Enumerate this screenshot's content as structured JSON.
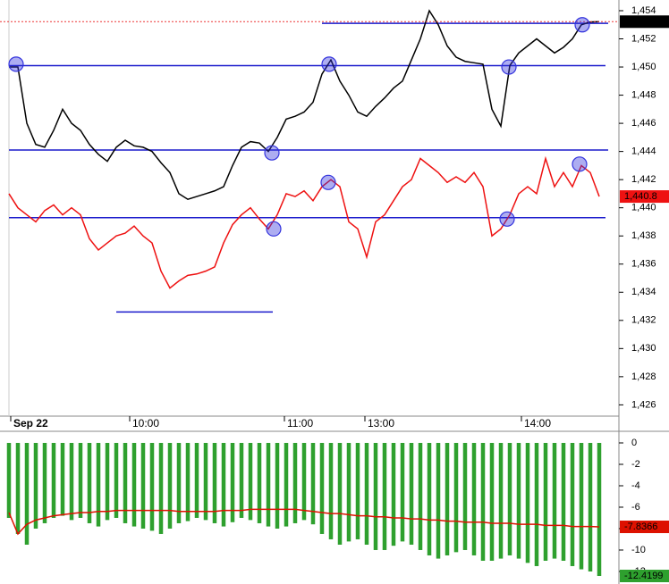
{
  "chart_data": [
    {
      "type": "line",
      "x": [
        0,
        1,
        2,
        3,
        4,
        5,
        6,
        7,
        8,
        9,
        10,
        11,
        12,
        13,
        14,
        15,
        16,
        17,
        18,
        19,
        20,
        21,
        22,
        23,
        24,
        25,
        26,
        27,
        28,
        29,
        30,
        31,
        32,
        33,
        34,
        35,
        36,
        37,
        38,
        39,
        40,
        41,
        42,
        43,
        44,
        45,
        46,
        47,
        48,
        49,
        50,
        51,
        52,
        53,
        54,
        55,
        56,
        57,
        58,
        59,
        60,
        61,
        62,
        63,
        64,
        65,
        66
      ],
      "xlim": [
        -1,
        68.2
      ],
      "xticks": [
        {
          "value": 0.2,
          "label": "Sep 22"
        },
        {
          "value": 13.5,
          "label": "10:00"
        },
        {
          "value": 30.8,
          "label": "11:00"
        },
        {
          "value": 39.8,
          "label": "13:00"
        },
        {
          "value": 57.3,
          "label": "14:00"
        }
      ],
      "ylim": [
        1425.2,
        1454.76
      ],
      "yticks": [
        {
          "value": 1454,
          "label": "1,454"
        },
        {
          "value": 1452,
          "label": "1,452"
        },
        {
          "value": 1450,
          "label": "1,450"
        },
        {
          "value": 1448,
          "label": "1,448"
        },
        {
          "value": 1446,
          "label": "1,446"
        },
        {
          "value": 1444,
          "label": "1,444"
        },
        {
          "value": 1442,
          "label": "1,442"
        },
        {
          "value": 1440,
          "label": "1,440"
        },
        {
          "value": 1438,
          "label": "1,438"
        },
        {
          "value": 1436,
          "label": "1,436"
        },
        {
          "value": 1434,
          "label": "1,434"
        },
        {
          "value": 1432,
          "label": "1,432"
        },
        {
          "value": 1430,
          "label": "1,430"
        },
        {
          "value": 1428,
          "label": "1,428"
        },
        {
          "value": 1426,
          "label": "1,426"
        }
      ],
      "series": [
        {
          "color": "#000000",
          "last_value": {
            "value": 1453.22,
            "label": "1,453.22"
          },
          "values": [
            1450,
            1450,
            1446,
            1444.5,
            1444.3,
            1445.5,
            1447,
            1446,
            1445.5,
            1444.5,
            1443.8,
            1443.3,
            1444.3,
            1444.8,
            1444.4,
            1444.3,
            1444,
            1443.2,
            1442.5,
            1441,
            1440.6,
            1440.8,
            1441,
            1441.2,
            1441.5,
            1443,
            1444.3,
            1444.7,
            1444.6,
            1444,
            1445,
            1446.3,
            1446.5,
            1446.8,
            1447.5,
            1449.5,
            1450.5,
            1449,
            1448,
            1446.8,
            1446.5,
            1447.2,
            1447.8,
            1448.5,
            1449,
            1450.5,
            1452,
            1454,
            1453,
            1451.5,
            1450.7,
            1450.4,
            1450.3,
            1450.2,
            1447,
            1445.8,
            1450.1,
            1451,
            1451.5,
            1452,
            1451.5,
            1451,
            1451.4,
            1452,
            1453,
            1453.2,
            1453.22
          ]
        },
        {
          "color": "#ee1111",
          "last_value": {
            "value": 1440.8,
            "label": "1,440.8"
          },
          "values": [
            1441,
            1440,
            1439.5,
            1439,
            1439.8,
            1440.2,
            1439.5,
            1440,
            1439.5,
            1437.8,
            1437,
            1437.5,
            1438,
            1438.2,
            1438.7,
            1438,
            1437.5,
            1435.5,
            1434.3,
            1434.8,
            1435.2,
            1435.3,
            1435.5,
            1435.8,
            1437.5,
            1438.8,
            1439.5,
            1440,
            1439.2,
            1438.5,
            1439.5,
            1441,
            1440.8,
            1441.2,
            1440.5,
            1441.5,
            1442,
            1441.5,
            1439,
            1438.5,
            1436.5,
            1439,
            1439.5,
            1440.5,
            1441.5,
            1442,
            1443.5,
            1443,
            1442.5,
            1441.8,
            1442.2,
            1441.8,
            1442.5,
            1441.5,
            1438,
            1438.5,
            1439.5,
            1441,
            1441.5,
            1441,
            1443.5,
            1441.5,
            1442.5,
            1441.5,
            1443,
            1442.5,
            1440.8
          ]
        }
      ],
      "level_color": "#1a1acc",
      "levels": [
        {
          "value": 1450.1,
          "x": [
            0,
            66.7
          ]
        },
        {
          "value": 1444.1,
          "x": [
            0,
            67
          ]
        },
        {
          "value": 1439.3,
          "x": [
            0,
            66.7
          ]
        },
        {
          "value": 1453.1,
          "x": [
            35,
            67
          ]
        },
        {
          "value": 1432.6,
          "x": [
            12,
            29.5
          ]
        }
      ],
      "marker_color": "#3333dd",
      "markers": [
        {
          "x": 0.8,
          "y": 1450.2
        },
        {
          "x": 35.8,
          "y": 1450.2
        },
        {
          "x": 29.4,
          "y": 1443.9
        },
        {
          "x": 55.9,
          "y": 1450
        },
        {
          "x": 64.1,
          "y": 1453
        },
        {
          "x": 29.6,
          "y": 1438.5
        },
        {
          "x": 35.7,
          "y": 1441.8
        },
        {
          "x": 55.7,
          "y": 1439.2
        },
        {
          "x": 63.8,
          "y": 1443.1
        }
      ]
    },
    {
      "type": "bar",
      "x": [
        0,
        1,
        2,
        3,
        4,
        5,
        6,
        7,
        8,
        9,
        10,
        11,
        12,
        13,
        14,
        15,
        16,
        17,
        18,
        19,
        20,
        21,
        22,
        23,
        24,
        25,
        26,
        27,
        28,
        29,
        30,
        31,
        32,
        33,
        34,
        35,
        36,
        37,
        38,
        39,
        40,
        41,
        42,
        43,
        44,
        45,
        46,
        47,
        48,
        49,
        50,
        51,
        52,
        53,
        54,
        55,
        56,
        57,
        58,
        59,
        60,
        61,
        62,
        63,
        64,
        65,
        66
      ],
      "xlim": [
        -1,
        68.2
      ],
      "ylim": [
        -13.17,
        1
      ],
      "yticks": [
        0,
        -2,
        -4,
        -6,
        -8,
        -10,
        -12
      ],
      "series": [
        {
          "type": "bar",
          "color": "#2ea02e",
          "label_text_color": "#ffffff",
          "values": [
            -7,
            -8.5,
            -9.5,
            -8,
            -7.5,
            -7,
            -6.8,
            -7.2,
            -7,
            -7.5,
            -7.8,
            -7.2,
            -7,
            -7.5,
            -7.8,
            -8,
            -8.2,
            -8.5,
            -8,
            -7.5,
            -7.3,
            -7,
            -7.2,
            -7.5,
            -7.8,
            -7.4,
            -7,
            -7.2,
            -7.5,
            -7.8,
            -8,
            -7.8,
            -7.5,
            -7.2,
            -7.6,
            -8.5,
            -9,
            -9.5,
            -9.2,
            -9,
            -9.5,
            -10,
            -10,
            -9.6,
            -9.2,
            -9.5,
            -10,
            -10.5,
            -10.8,
            -10.5,
            -10.2,
            -10,
            -10.5,
            -11,
            -11,
            -10.8,
            -10.5,
            -10.8,
            -11.2,
            -11.5,
            -11,
            -10.8,
            -11,
            -11.5,
            -11.8,
            -12,
            -12.4199
          ]
        },
        {
          "type": "line",
          "color": "#dd1100",
          "label_text_color": "#000000",
          "values": [
            -6.5,
            -8.5,
            -7.6,
            -7.2,
            -7,
            -6.8,
            -6.7,
            -6.6,
            -6.5,
            -6.5,
            -6.4,
            -6.4,
            -6.3,
            -6.3,
            -6.3,
            -6.3,
            -6.3,
            -6.3,
            -6.3,
            -6.4,
            -6.4,
            -6.4,
            -6.4,
            -6.4,
            -6.3,
            -6.3,
            -6.3,
            -6.2,
            -6.2,
            -6.2,
            -6.2,
            -6.2,
            -6.2,
            -6.3,
            -6.4,
            -6.5,
            -6.6,
            -6.6,
            -6.7,
            -6.8,
            -6.8,
            -6.9,
            -6.9,
            -7,
            -7,
            -7.1,
            -7.1,
            -7.2,
            -7.2,
            -7.3,
            -7.3,
            -7.4,
            -7.4,
            -7.4,
            -7.5,
            -7.5,
            -7.5,
            -7.6,
            -7.6,
            -7.6,
            -7.7,
            -7.7,
            -7.7,
            -7.8,
            -7.8,
            -7.8,
            -7.8366
          ]
        }
      ]
    }
  ]
}
